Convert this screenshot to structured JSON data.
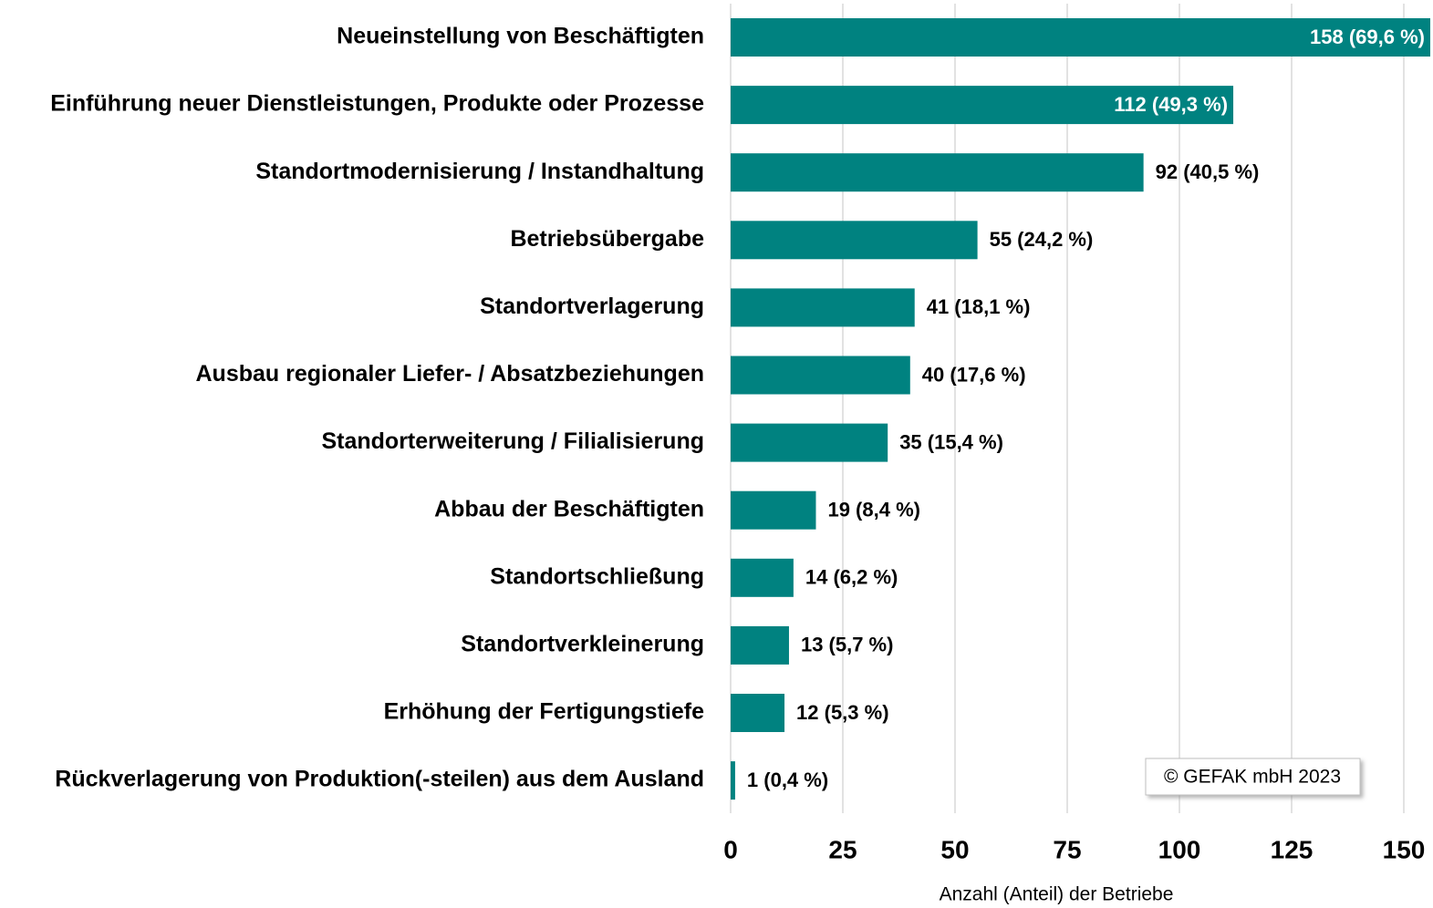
{
  "chart_data": {
    "type": "bar",
    "orientation": "horizontal",
    "categories": [
      "Neueinstellung von Beschäftigten",
      "Einführung neuer Dienstleistungen, Produkte oder Prozesse",
      "Standortmodernisierung / Instandhaltung",
      "Betriebsübergabe",
      "Standortverlagerung",
      "Ausbau regionaler Liefer- / Absatzbeziehungen",
      "Standorterweiterung / Filialisierung",
      "Abbau der Beschäftigten",
      "Standortschließung",
      "Standortverkleinerung",
      "Erhöhung der Fertigungstiefe",
      "Rückverlagerung von Produktion(-steilen) aus dem Ausland"
    ],
    "values": [
      158,
      112,
      92,
      55,
      41,
      40,
      35,
      19,
      14,
      13,
      12,
      1
    ],
    "value_labels": [
      "158 (69,6 %)",
      "112 (49,3 %)",
      "92 (40,5 %)",
      "55 (24,2 %)",
      "41 (18,1 %)",
      "40 (17,6 %)",
      "35 (15,4 %)",
      "19 (8,4 %)",
      "14 (6,2 %)",
      "13 (5,7 %)",
      "12 (5,3 %)",
      "1 (0,4 %)"
    ],
    "color": "#008280",
    "xlim": [
      0,
      150
    ],
    "xticks": [
      0,
      25,
      50,
      75,
      100,
      125,
      150
    ],
    "grid": true,
    "xlabel": "Anzahl (Anteil) der Betriebe",
    "annotation": "© GEFAK mbH 2023"
  }
}
